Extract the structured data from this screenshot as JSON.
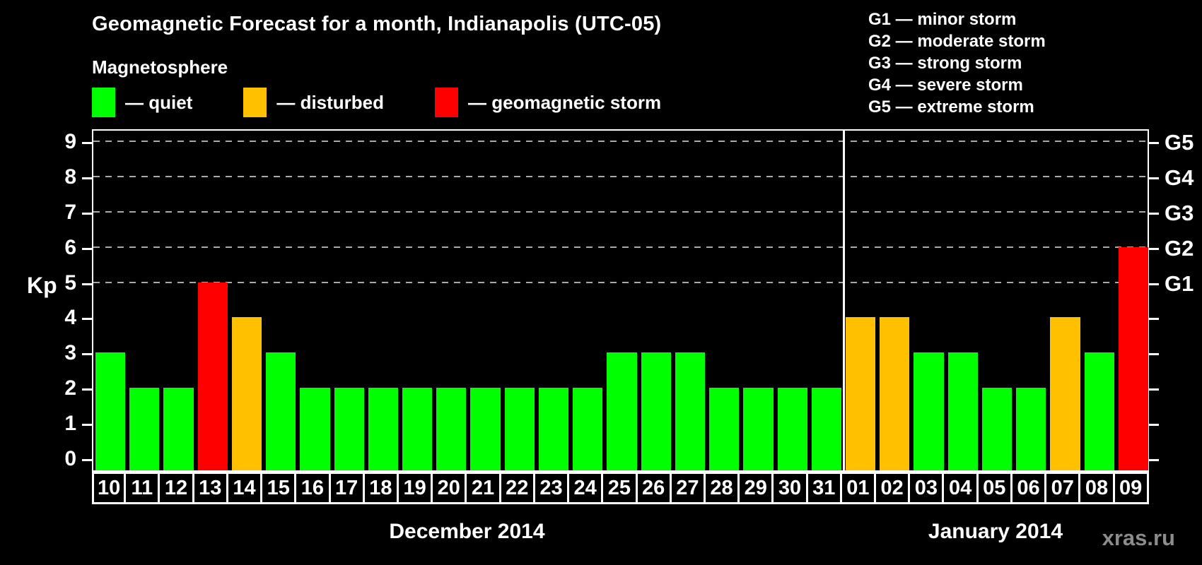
{
  "title": "Geomagnetic Forecast for a month, Indianapolis (UTC-05)",
  "legend": {
    "heading": "Magnetosphere",
    "items": [
      {
        "status": "quiet",
        "label": "— quiet"
      },
      {
        "status": "disturbed",
        "label": "— disturbed"
      },
      {
        "status": "storm",
        "label": "— geomagnetic storm"
      }
    ]
  },
  "status_colors": {
    "quiet": "#00ff00",
    "disturbed": "#ffc000",
    "storm": "#ff0000"
  },
  "storm_scale_legend": [
    "G1 — minor storm",
    "G2 — moderate storm",
    "G3 — strong storm",
    "G4 — severe storm",
    "G5 — extreme storm"
  ],
  "y_axis": {
    "label": "Kp",
    "ticks": [
      0,
      1,
      2,
      3,
      4,
      5,
      6,
      7,
      8,
      9
    ]
  },
  "right_axis": {
    "labels": [
      {
        "kp": 5,
        "label": "G1"
      },
      {
        "kp": 6,
        "label": "G2"
      },
      {
        "kp": 7,
        "label": "G3"
      },
      {
        "kp": 8,
        "label": "G4"
      },
      {
        "kp": 9,
        "label": "G5"
      }
    ]
  },
  "watermark": "xras.ru",
  "chart_data": {
    "type": "bar",
    "title": "Geomagnetic Forecast for a month, Indianapolis (UTC-05)",
    "ylabel": "Kp",
    "ylim": [
      0,
      9
    ],
    "grid": "dashed horizontal lines at Kp 5-9 (G1-G5)",
    "gridlines_at_kp": [
      5,
      6,
      7,
      8,
      9
    ],
    "legend_position": "top-left",
    "series": [
      {
        "name": "December 2014",
        "points": [
          {
            "day": "10",
            "kp": 3,
            "status": "quiet"
          },
          {
            "day": "11",
            "kp": 2,
            "status": "quiet"
          },
          {
            "day": "12",
            "kp": 2,
            "status": "quiet"
          },
          {
            "day": "13",
            "kp": 5,
            "status": "storm"
          },
          {
            "day": "14",
            "kp": 4,
            "status": "disturbed"
          },
          {
            "day": "15",
            "kp": 3,
            "status": "quiet"
          },
          {
            "day": "16",
            "kp": 2,
            "status": "quiet"
          },
          {
            "day": "17",
            "kp": 2,
            "status": "quiet"
          },
          {
            "day": "18",
            "kp": 2,
            "status": "quiet"
          },
          {
            "day": "19",
            "kp": 2,
            "status": "quiet"
          },
          {
            "day": "20",
            "kp": 2,
            "status": "quiet"
          },
          {
            "day": "21",
            "kp": 2,
            "status": "quiet"
          },
          {
            "day": "22",
            "kp": 2,
            "status": "quiet"
          },
          {
            "day": "23",
            "kp": 2,
            "status": "quiet"
          },
          {
            "day": "24",
            "kp": 2,
            "status": "quiet"
          },
          {
            "day": "25",
            "kp": 3,
            "status": "quiet"
          },
          {
            "day": "26",
            "kp": 3,
            "status": "quiet"
          },
          {
            "day": "27",
            "kp": 3,
            "status": "quiet"
          },
          {
            "day": "28",
            "kp": 2,
            "status": "quiet"
          },
          {
            "day": "29",
            "kp": 2,
            "status": "quiet"
          },
          {
            "day": "30",
            "kp": 2,
            "status": "quiet"
          },
          {
            "day": "31",
            "kp": 2,
            "status": "quiet"
          }
        ]
      },
      {
        "name": "January 2014",
        "points": [
          {
            "day": "01",
            "kp": 4,
            "status": "disturbed"
          },
          {
            "day": "02",
            "kp": 4,
            "status": "disturbed"
          },
          {
            "day": "03",
            "kp": 3,
            "status": "quiet"
          },
          {
            "day": "04",
            "kp": 3,
            "status": "quiet"
          },
          {
            "day": "05",
            "kp": 2,
            "status": "quiet"
          },
          {
            "day": "06",
            "kp": 2,
            "status": "quiet"
          },
          {
            "day": "07",
            "kp": 4,
            "status": "disturbed"
          },
          {
            "day": "08",
            "kp": 3,
            "status": "quiet"
          },
          {
            "day": "09",
            "kp": 6,
            "status": "storm"
          }
        ]
      }
    ]
  }
}
